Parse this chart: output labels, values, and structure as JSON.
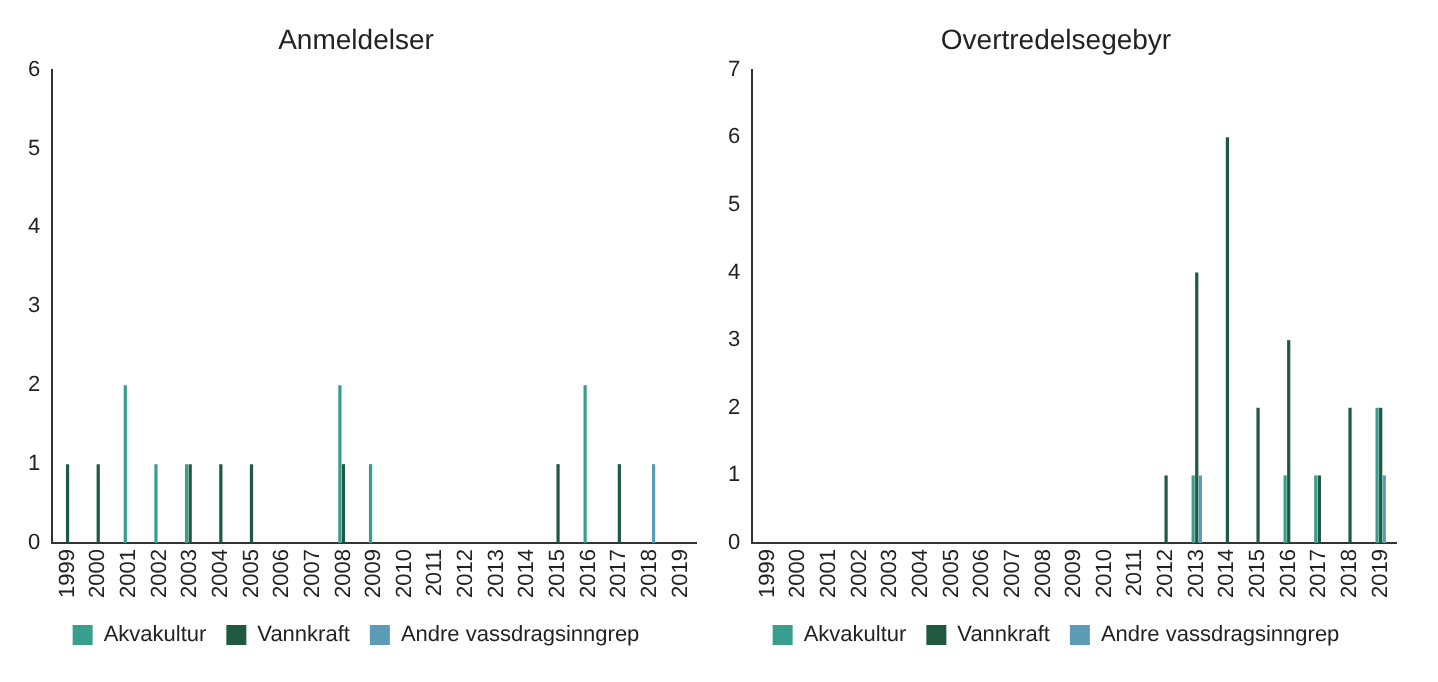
{
  "chart_data": [
    {
      "type": "bar",
      "title": "Anmeldelser",
      "categories": [
        "1999",
        "2000",
        "2001",
        "2002",
        "2003",
        "2004",
        "2005",
        "2006",
        "2007",
        "2008",
        "2009",
        "2010",
        "2011",
        "2012",
        "2013",
        "2014",
        "2015",
        "2016",
        "2017",
        "2018",
        "2019"
      ],
      "series": [
        {
          "name": "Akvakultur",
          "color": "#3a9e8c",
          "values": [
            null,
            null,
            2,
            1,
            1,
            null,
            null,
            null,
            null,
            2,
            1,
            null,
            null,
            null,
            null,
            null,
            null,
            2,
            null,
            null,
            null
          ]
        },
        {
          "name": "Vannkraft",
          "color": "#1f5a40",
          "values": [
            1,
            1,
            null,
            null,
            1,
            1,
            1,
            null,
            null,
            1,
            null,
            null,
            null,
            null,
            null,
            null,
            1,
            null,
            1,
            null,
            null
          ]
        },
        {
          "name": "Andre vassdragsinngrep",
          "color": "#5b9bb5",
          "values": [
            null,
            null,
            null,
            null,
            null,
            null,
            null,
            null,
            null,
            null,
            null,
            null,
            null,
            null,
            null,
            null,
            null,
            null,
            null,
            1,
            null
          ]
        }
      ],
      "ylim": [
        0,
        6
      ],
      "yticks": [
        0,
        1,
        2,
        3,
        4,
        5,
        6
      ],
      "grid": false,
      "legend": "bottom"
    },
    {
      "type": "bar",
      "title": "Overtredelsegebyr",
      "categories": [
        "1999",
        "2000",
        "2001",
        "2002",
        "2003",
        "2004",
        "2005",
        "2006",
        "2007",
        "2008",
        "2009",
        "2010",
        "2011",
        "2012",
        "2013",
        "2014",
        "2015",
        "2016",
        "2017",
        "2018",
        "2019"
      ],
      "series": [
        {
          "name": "Akvakultur",
          "color": "#3a9e8c",
          "values": [
            null,
            null,
            null,
            null,
            null,
            null,
            null,
            null,
            null,
            null,
            null,
            null,
            null,
            null,
            1,
            null,
            null,
            1,
            1,
            null,
            2
          ]
        },
        {
          "name": "Vannkraft",
          "color": "#1f5a40",
          "values": [
            null,
            null,
            null,
            null,
            null,
            null,
            null,
            null,
            null,
            null,
            null,
            null,
            null,
            1,
            4,
            6,
            2,
            3,
            1,
            2,
            2
          ]
        },
        {
          "name": "Andre vassdragsinngrep",
          "color": "#5b9bb5",
          "values": [
            null,
            null,
            null,
            null,
            null,
            null,
            null,
            null,
            null,
            null,
            null,
            null,
            null,
            null,
            1,
            null,
            null,
            null,
            null,
            null,
            1
          ]
        }
      ],
      "ylim": [
        0,
        7
      ],
      "yticks": [
        0,
        1,
        2,
        3,
        4,
        5,
        6,
        7
      ],
      "grid": false,
      "legend": "bottom"
    }
  ]
}
